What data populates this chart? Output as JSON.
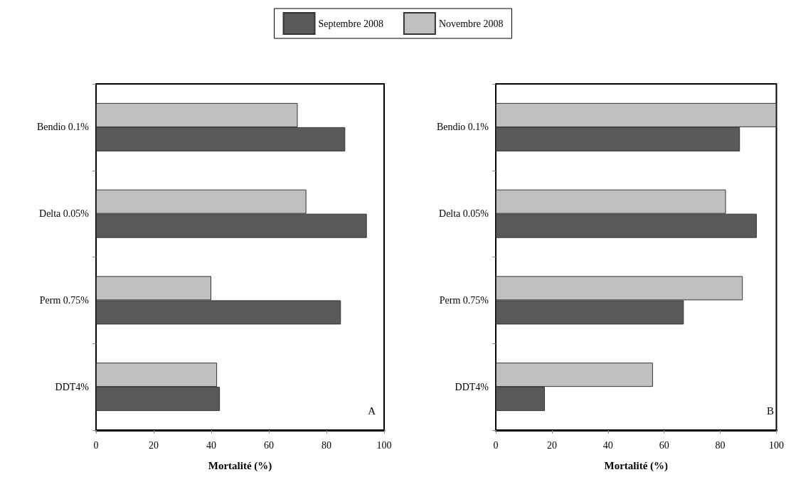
{
  "chart_data": [
    {
      "type": "bar",
      "orientation": "horizontal",
      "categories": [
        "Bendio 0.1%",
        "Delta 0.05%",
        "Perm 0.75%",
        "DDT4%"
      ],
      "series": [
        {
          "name": "Septembre 2008",
          "color": "#595959",
          "values": [
            86.5,
            94,
            85,
            43
          ]
        },
        {
          "name": "Novembre 2008",
          "color": "#c0c0c0",
          "values": [
            70,
            73,
            40,
            42
          ]
        }
      ],
      "xlabel": "Mortalité (%)",
      "xlim": [
        0,
        100
      ],
      "xticks": [
        0,
        20,
        40,
        60,
        80,
        100
      ],
      "legend": "top",
      "grid": false,
      "annotations": [
        "A"
      ]
    },
    {
      "type": "bar",
      "orientation": "horizontal",
      "categories": [
        "Bendio 0.1%",
        "Delta 0.05%",
        "Perm 0.75%",
        "DDT4%"
      ],
      "series": [
        {
          "color": "#595959",
          "values": [
            87,
            93,
            67,
            17.5
          ]
        },
        {
          "color": "#c0c0c0",
          "values": [
            100,
            82,
            88,
            56
          ]
        }
      ],
      "xlabel": "Mortalité (%)",
      "xlim": [
        0,
        100
      ],
      "xticks": [
        0,
        20,
        40,
        60,
        80,
        100
      ],
      "grid": false,
      "annotations": [
        "B"
      ]
    }
  ]
}
